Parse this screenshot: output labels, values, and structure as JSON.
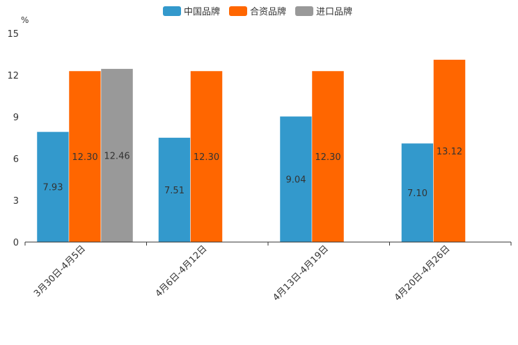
{
  "chart_data": {
    "type": "bar",
    "unit": "%",
    "ylim": [
      0,
      15
    ],
    "yticks": [
      "0",
      "3",
      "6",
      "9",
      "12",
      "15"
    ],
    "categories": [
      "3月30日-4月5日",
      "4月6日-4月12日",
      "4月13日-4月19日",
      "4月20日-4月26日"
    ],
    "series": [
      {
        "name": "中国品牌",
        "color": "#3399cc",
        "values": [
          7.93,
          7.51,
          9.04,
          7.1
        ],
        "labels": [
          "7.93",
          "7.51",
          "9.04",
          "7.10"
        ]
      },
      {
        "name": "合资品牌",
        "color": "#ff6600",
        "values": [
          12.3,
          12.3,
          12.3,
          13.12
        ],
        "labels": [
          "12.30",
          "12.30",
          "12.30",
          "13.12"
        ]
      },
      {
        "name": "进口品牌",
        "color": "#999999",
        "values": [
          12.46,
          null,
          null,
          null
        ],
        "labels": [
          "12.46",
          null,
          null,
          null
        ]
      }
    ],
    "legend_position": "top-center"
  }
}
